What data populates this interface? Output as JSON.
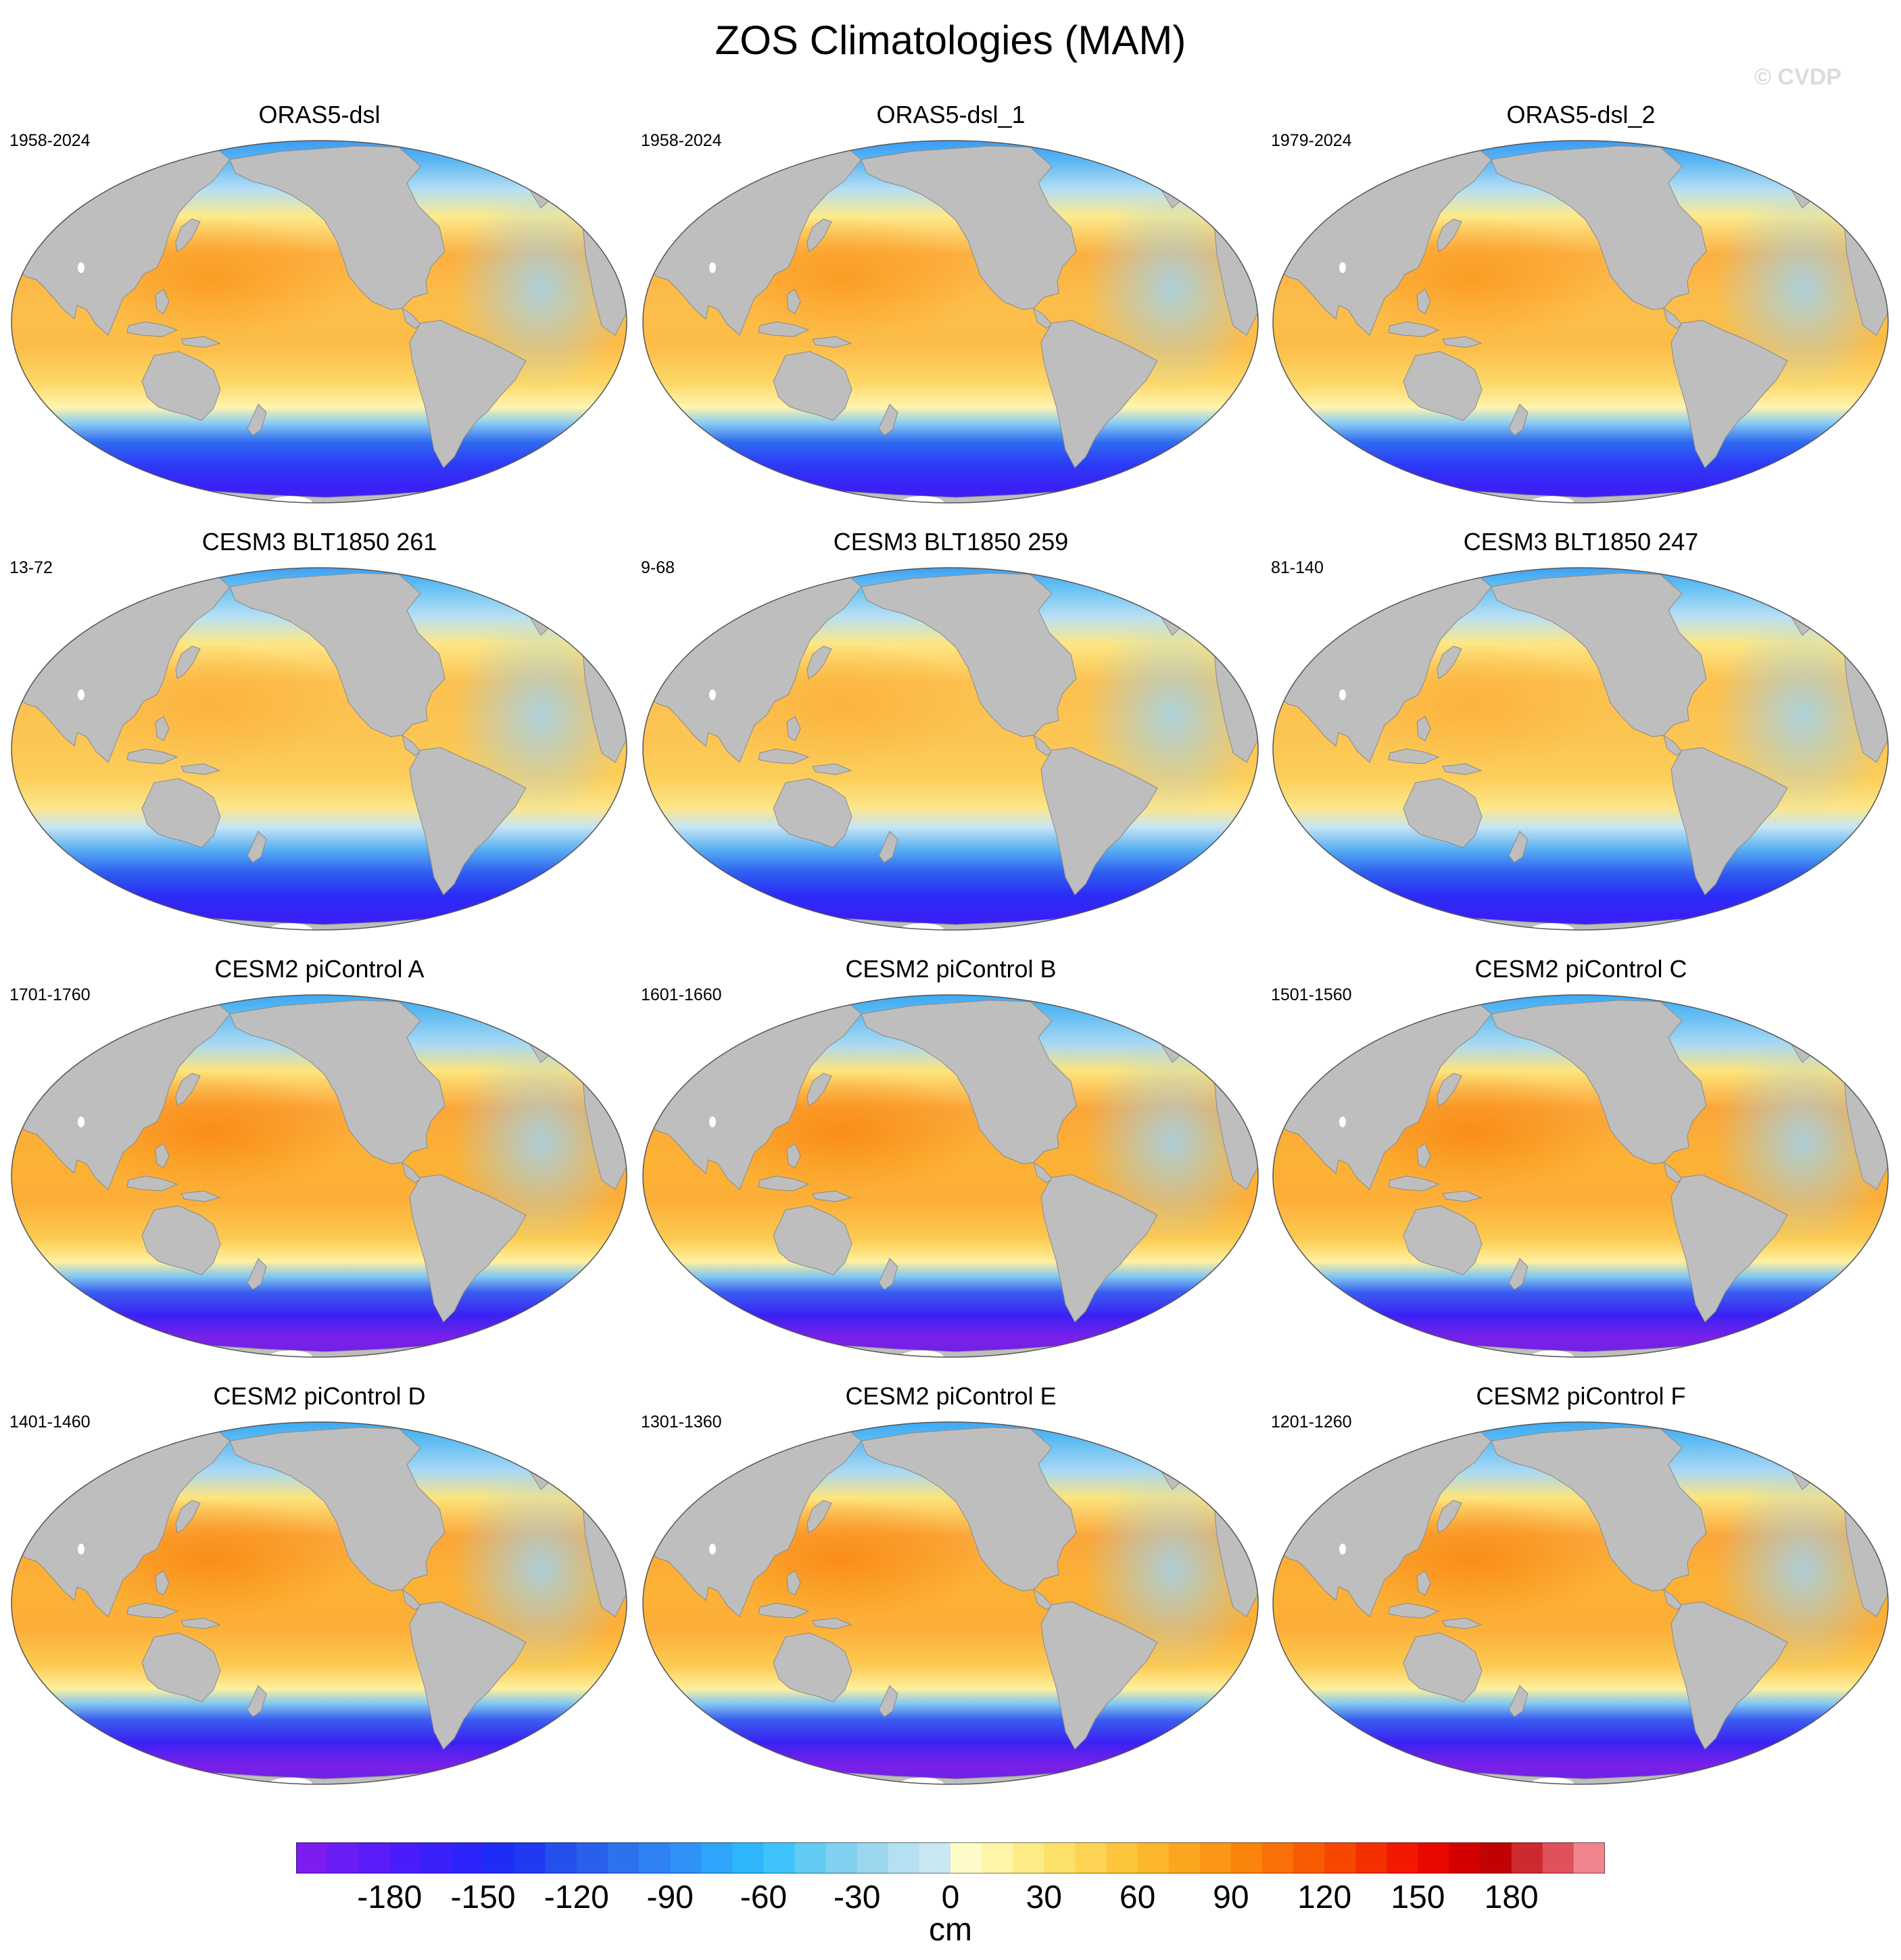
{
  "figure": {
    "title": "ZOS Climatologies (MAM)",
    "watermark": "© CVDP"
  },
  "panels": [
    {
      "title": "ORAS5-dsl",
      "period": "1958-2024",
      "style": "reanalysis"
    },
    {
      "title": "ORAS5-dsl_1",
      "period": "1958-2024",
      "style": "reanalysis"
    },
    {
      "title": "ORAS5-dsl_2",
      "period": "1979-2024",
      "style": "reanalysis"
    },
    {
      "title": "CESM3 BLT1850 261",
      "period": "13-72",
      "style": "cesm3"
    },
    {
      "title": "CESM3 BLT1850 259",
      "period": "9-68",
      "style": "cesm3"
    },
    {
      "title": "CESM3 BLT1850 247",
      "period": "81-140",
      "style": "cesm3"
    },
    {
      "title": "CESM2 piControl A",
      "period": "1701-1760",
      "style": "cesm2"
    },
    {
      "title": "CESM2 piControl B",
      "period": "1601-1660",
      "style": "cesm2"
    },
    {
      "title": "CESM2 piControl C",
      "period": "1501-1560",
      "style": "cesm2"
    },
    {
      "title": "CESM2 piControl D",
      "period": "1401-1460",
      "style": "cesm2"
    },
    {
      "title": "CESM2 piControl E",
      "period": "1301-1360",
      "style": "cesm2"
    },
    {
      "title": "CESM2 piControl F",
      "period": "1201-1260",
      "style": "cesm2"
    }
  ],
  "colorbar": {
    "units": "cm",
    "min": -210,
    "max": 210,
    "step": 10,
    "labels": [
      -180,
      -150,
      -120,
      -90,
      -60,
      -30,
      0,
      30,
      60,
      90,
      120,
      150,
      180
    ],
    "colors": [
      "#7c1cf0",
      "#6a1cf5",
      "#5a1cf8",
      "#4a1cfb",
      "#3a20fb",
      "#2c24fa",
      "#1f2cf5",
      "#1f3af0",
      "#2450ec",
      "#2860ea",
      "#2c72ee",
      "#2f82f2",
      "#2f92f6",
      "#2ea4fa",
      "#2db6fc",
      "#3ec4fb",
      "#62cbf3",
      "#80d0ef",
      "#9bd8f0",
      "#b4e0f2",
      "#c8e8f4",
      "#fffbc8",
      "#fff5a8",
      "#fdeb86",
      "#fde06a",
      "#fcd352",
      "#fcc53c",
      "#fcb62c",
      "#fca620",
      "#fc9616",
      "#fb840c",
      "#f97006",
      "#f85c02",
      "#f64700",
      "#f43000",
      "#f21900",
      "#e80800",
      "#d40000",
      "#c00202",
      "#cc2a2e",
      "#e0525a",
      "#f28490"
    ]
  },
  "map_colors": {
    "land": "#bebebe",
    "ice": "#ffffff"
  }
}
